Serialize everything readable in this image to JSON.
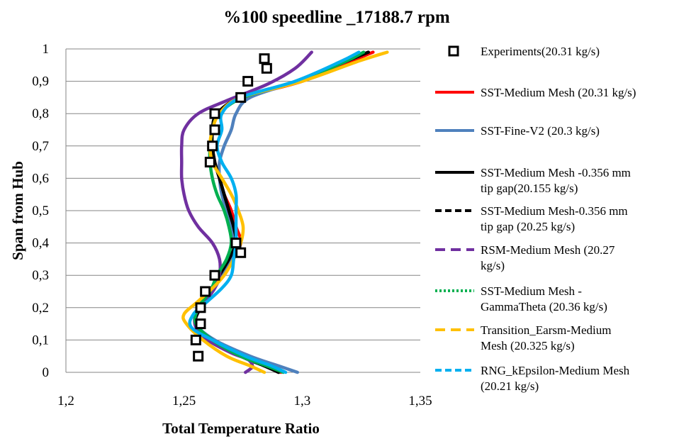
{
  "chart_data": {
    "type": "line",
    "title": "%100 speedline _17188.7 rpm",
    "xlabel": "Total  Temperature Ratio",
    "ylabel": "Span from Hub",
    "xlim": [
      1.2,
      1.35
    ],
    "ylim": [
      0,
      1
    ],
    "x_ticks": [
      "1,2",
      "1,25",
      "1,3",
      "1,35"
    ],
    "y_ticks": [
      "0",
      "0,1",
      "0,2",
      "0,3",
      "0,4",
      "0,5",
      "0,6",
      "0,7",
      "0,8",
      "0,9",
      "1"
    ],
    "grid": "horizontal",
    "legend_position": "right",
    "experiments": {
      "name": "Experiments(20.31 kg/s)",
      "color": "#000000",
      "points": [
        [
          1.284,
          0.97
        ],
        [
          1.285,
          0.94
        ],
        [
          1.277,
          0.9
        ],
        [
          1.274,
          0.85
        ],
        [
          1.263,
          0.8
        ],
        [
          1.263,
          0.75
        ],
        [
          1.262,
          0.7
        ],
        [
          1.261,
          0.65
        ],
        [
          1.272,
          0.4
        ],
        [
          1.274,
          0.37
        ],
        [
          1.263,
          0.3
        ],
        [
          1.259,
          0.25
        ],
        [
          1.257,
          0.2
        ],
        [
          1.257,
          0.15
        ],
        [
          1.255,
          0.1
        ],
        [
          1.256,
          0.05
        ]
      ]
    },
    "series": [
      {
        "name": "SST-Medium Mesh (20.31 kg/s)",
        "color": "#ff0000",
        "style": "solid",
        "points": [
          [
            1.291,
            0
          ],
          [
            1.285,
            0.02
          ],
          [
            1.275,
            0.05
          ],
          [
            1.262,
            0.1
          ],
          [
            1.255,
            0.15
          ],
          [
            1.257,
            0.2
          ],
          [
            1.262,
            0.25
          ],
          [
            1.265,
            0.3
          ],
          [
            1.27,
            0.35
          ],
          [
            1.274,
            0.4
          ],
          [
            1.272,
            0.45
          ],
          [
            1.27,
            0.5
          ],
          [
            1.267,
            0.55
          ],
          [
            1.265,
            0.6
          ],
          [
            1.263,
            0.65
          ],
          [
            1.262,
            0.7
          ],
          [
            1.262,
            0.75
          ],
          [
            1.265,
            0.8
          ],
          [
            1.275,
            0.85
          ],
          [
            1.3,
            0.9
          ],
          [
            1.32,
            0.96
          ],
          [
            1.33,
            0.99
          ]
        ]
      },
      {
        "name": "SST-Fine-V2 (20.3 kg/s)",
        "color": "#4f81bd",
        "style": "solid",
        "points": [
          [
            1.298,
            0
          ],
          [
            1.29,
            0.02
          ],
          [
            1.278,
            0.05
          ],
          [
            1.263,
            0.1
          ],
          [
            1.255,
            0.15
          ],
          [
            1.256,
            0.2
          ],
          [
            1.262,
            0.25
          ],
          [
            1.266,
            0.3
          ],
          [
            1.27,
            0.35
          ],
          [
            1.271,
            0.4
          ],
          [
            1.27,
            0.45
          ],
          [
            1.268,
            0.5
          ],
          [
            1.266,
            0.55
          ],
          [
            1.265,
            0.6
          ],
          [
            1.265,
            0.65
          ],
          [
            1.267,
            0.7
          ],
          [
            1.27,
            0.75
          ],
          [
            1.272,
            0.8
          ],
          [
            1.278,
            0.85
          ],
          [
            1.298,
            0.9
          ],
          [
            1.318,
            0.96
          ],
          [
            1.326,
            0.99
          ]
        ]
      },
      {
        "name": "SST-Medium Mesh -0.356 mm tip gap(20.155 kg/s)",
        "color": "#000000",
        "style": "solid",
        "points": [
          [
            1.29,
            0
          ],
          [
            1.284,
            0.02
          ],
          [
            1.274,
            0.05
          ],
          [
            1.262,
            0.1
          ],
          [
            1.255,
            0.15
          ],
          [
            1.257,
            0.2
          ],
          [
            1.262,
            0.25
          ],
          [
            1.265,
            0.3
          ],
          [
            1.269,
            0.35
          ],
          [
            1.272,
            0.4
          ],
          [
            1.271,
            0.45
          ],
          [
            1.269,
            0.5
          ],
          [
            1.267,
            0.55
          ],
          [
            1.265,
            0.6
          ],
          [
            1.263,
            0.65
          ],
          [
            1.262,
            0.7
          ],
          [
            1.262,
            0.75
          ],
          [
            1.264,
            0.8
          ],
          [
            1.274,
            0.85
          ],
          [
            1.298,
            0.9
          ],
          [
            1.318,
            0.96
          ],
          [
            1.328,
            0.99
          ]
        ]
      },
      {
        "name": "SST-Medium Mesh-0.356 mm tip gap  (20.25 kg/s)",
        "color": "#000000",
        "style": "dashed",
        "points": [
          [
            1.29,
            0
          ],
          [
            1.284,
            0.02
          ],
          [
            1.274,
            0.05
          ],
          [
            1.262,
            0.1
          ],
          [
            1.255,
            0.15
          ],
          [
            1.257,
            0.2
          ],
          [
            1.262,
            0.25
          ],
          [
            1.265,
            0.3
          ],
          [
            1.269,
            0.35
          ],
          [
            1.272,
            0.4
          ],
          [
            1.271,
            0.45
          ],
          [
            1.269,
            0.5
          ],
          [
            1.267,
            0.55
          ],
          [
            1.265,
            0.6
          ],
          [
            1.263,
            0.65
          ],
          [
            1.262,
            0.7
          ],
          [
            1.262,
            0.75
          ],
          [
            1.264,
            0.8
          ],
          [
            1.274,
            0.85
          ],
          [
            1.298,
            0.9
          ],
          [
            1.318,
            0.96
          ],
          [
            1.328,
            0.99
          ]
        ]
      },
      {
        "name": "RSM-Medium Mesh (20.27 kg/s)",
        "color": "#7030a0",
        "style": "dashed",
        "points": [
          [
            1.276,
            0
          ],
          [
            1.278,
            0.01
          ],
          [
            1.279,
            0.02
          ],
          [
            1.277,
            0.04
          ],
          [
            1.27,
            0.06
          ],
          [
            1.26,
            0.1
          ],
          [
            1.255,
            0.14
          ],
          [
            1.255,
            0.18
          ],
          [
            1.259,
            0.22
          ],
          [
            1.263,
            0.26
          ],
          [
            1.265,
            0.3
          ],
          [
            1.265,
            0.35
          ],
          [
            1.262,
            0.4
          ],
          [
            1.256,
            0.45
          ],
          [
            1.252,
            0.5
          ],
          [
            1.25,
            0.55
          ],
          [
            1.249,
            0.6
          ],
          [
            1.249,
            0.65
          ],
          [
            1.249,
            0.7
          ],
          [
            1.25,
            0.75
          ],
          [
            1.256,
            0.8
          ],
          [
            1.268,
            0.84
          ],
          [
            1.285,
            0.89
          ],
          [
            1.297,
            0.94
          ],
          [
            1.304,
            0.99
          ]
        ]
      },
      {
        "name": "SST-Medium Mesh -GammaTheta (20.36 kg/s)",
        "color": "#00b050",
        "style": "dotted",
        "points": [
          [
            1.292,
            0
          ],
          [
            1.285,
            0.02
          ],
          [
            1.274,
            0.05
          ],
          [
            1.262,
            0.1
          ],
          [
            1.255,
            0.15
          ],
          [
            1.256,
            0.2
          ],
          [
            1.261,
            0.25
          ],
          [
            1.264,
            0.3
          ],
          [
            1.268,
            0.35
          ],
          [
            1.27,
            0.4
          ],
          [
            1.269,
            0.45
          ],
          [
            1.267,
            0.5
          ],
          [
            1.264,
            0.55
          ],
          [
            1.262,
            0.6
          ],
          [
            1.261,
            0.65
          ],
          [
            1.261,
            0.7
          ],
          [
            1.262,
            0.75
          ],
          [
            1.265,
            0.8
          ],
          [
            1.275,
            0.85
          ],
          [
            1.298,
            0.9
          ],
          [
            1.318,
            0.96
          ],
          [
            1.326,
            0.99
          ]
        ]
      },
      {
        "name": "Transition_Earsm-Medium Mesh (20.325 kg/s)",
        "color": "#ffc000",
        "style": "dashed",
        "points": [
          [
            1.284,
            0
          ],
          [
            1.278,
            0.02
          ],
          [
            1.268,
            0.05
          ],
          [
            1.258,
            0.1
          ],
          [
            1.251,
            0.15
          ],
          [
            1.25,
            0.18
          ],
          [
            1.256,
            0.22
          ],
          [
            1.262,
            0.26
          ],
          [
            1.267,
            0.3
          ],
          [
            1.271,
            0.35
          ],
          [
            1.274,
            0.4
          ],
          [
            1.275,
            0.45
          ],
          [
            1.273,
            0.5
          ],
          [
            1.27,
            0.55
          ],
          [
            1.266,
            0.6
          ],
          [
            1.262,
            0.65
          ],
          [
            1.261,
            0.7
          ],
          [
            1.262,
            0.75
          ],
          [
            1.265,
            0.8
          ],
          [
            1.274,
            0.85
          ],
          [
            1.3,
            0.9
          ],
          [
            1.323,
            0.96
          ],
          [
            1.336,
            0.99
          ]
        ]
      },
      {
        "name": "RNG_kEpsilon-Medium Mesh (20.21 kg/s)",
        "color": "#00b0f0",
        "style": "dashed",
        "points": [
          [
            1.293,
            0
          ],
          [
            1.287,
            0.02
          ],
          [
            1.276,
            0.05
          ],
          [
            1.262,
            0.1
          ],
          [
            1.253,
            0.14
          ],
          [
            1.254,
            0.18
          ],
          [
            1.26,
            0.22
          ],
          [
            1.266,
            0.26
          ],
          [
            1.27,
            0.3
          ],
          [
            1.271,
            0.35
          ],
          [
            1.272,
            0.4
          ],
          [
            1.272,
            0.45
          ],
          [
            1.272,
            0.5
          ],
          [
            1.272,
            0.55
          ],
          [
            1.27,
            0.6
          ],
          [
            1.266,
            0.65
          ],
          [
            1.264,
            0.7
          ],
          [
            1.266,
            0.75
          ],
          [
            1.266,
            0.8
          ],
          [
            1.274,
            0.85
          ],
          [
            1.297,
            0.9
          ],
          [
            1.316,
            0.96
          ],
          [
            1.324,
            0.99
          ]
        ]
      }
    ]
  },
  "legend": [
    {
      "kind": "marker",
      "lines": [
        "Experiments(20.31 kg/s)"
      ],
      "color": "#000000"
    },
    {
      "kind": "line",
      "style": "solid",
      "lines": [
        "SST-Medium Mesh (20.31 kg/s)"
      ],
      "color": "#ff0000"
    },
    {
      "kind": "line",
      "style": "solid",
      "lines": [
        "SST-Fine-V2 (20.3 kg/s)"
      ],
      "color": "#4f81bd"
    },
    {
      "kind": "line",
      "style": "solid",
      "lines": [
        "SST-Medium Mesh -0.356 mm",
        "tip gap(20.155 kg/s)"
      ],
      "color": "#000000"
    },
    {
      "kind": "line",
      "style": "dashed",
      "lines": [
        "SST-Medium Mesh-0.356 mm",
        "tip gap  (20.25 kg/s)"
      ],
      "color": "#000000"
    },
    {
      "kind": "line",
      "style": "longdash",
      "lines": [
        "RSM-Medium Mesh (20.27",
        "kg/s)"
      ],
      "color": "#7030a0"
    },
    {
      "kind": "line",
      "style": "dotted",
      "lines": [
        "SST-Medium Mesh -",
        "GammaTheta (20.36 kg/s)"
      ],
      "color": "#00b050"
    },
    {
      "kind": "line",
      "style": "longdash",
      "lines": [
        "Transition_Earsm-Medium",
        "Mesh (20.325 kg/s)"
      ],
      "color": "#ffc000"
    },
    {
      "kind": "line",
      "style": "dashed",
      "lines": [
        "RNG_kEpsilon-Medium Mesh",
        "(20.21 kg/s)"
      ],
      "color": "#00b0f0"
    }
  ]
}
